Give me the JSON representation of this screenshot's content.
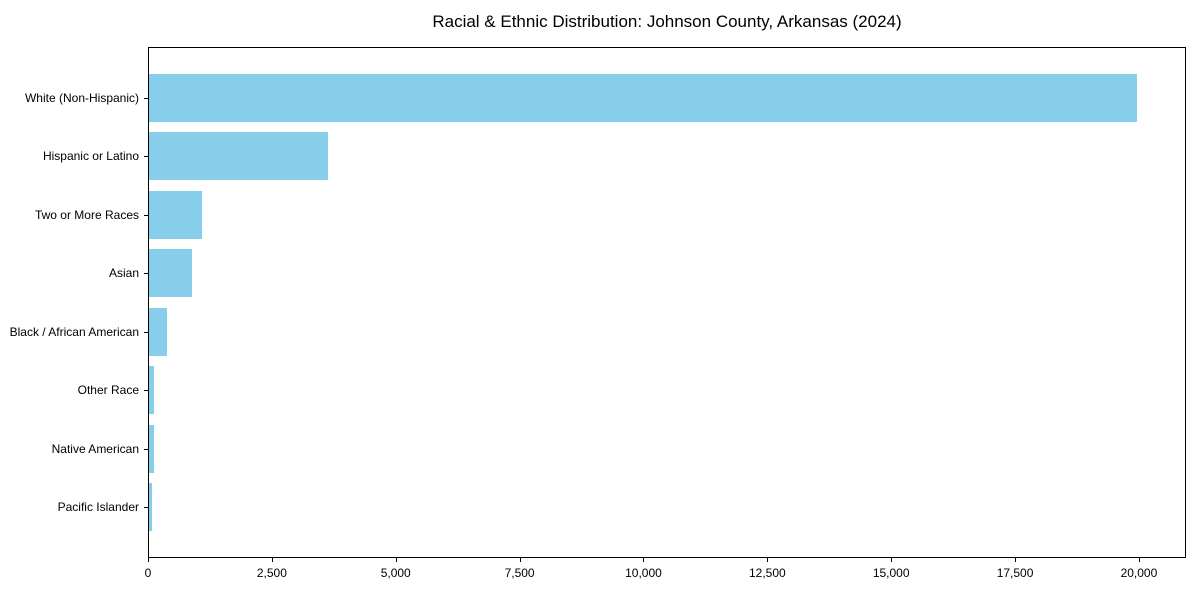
{
  "chart_data": {
    "type": "bar",
    "orientation": "horizontal",
    "title": "Racial & Ethnic Distribution: Johnson County, Arkansas (2024)",
    "categories": [
      "White (Non-Hispanic)",
      "Hispanic or Latino",
      "Two or More Races",
      "Asian",
      "Black / African American",
      "Other Race",
      "Native American",
      "Pacific Islander"
    ],
    "values": [
      19940,
      3610,
      1070,
      870,
      360,
      105,
      100,
      65
    ],
    "xlabel": "",
    "ylabel": "",
    "xlim": [
      0,
      20950
    ],
    "x_ticks": [
      0,
      2500,
      5000,
      7500,
      10000,
      12500,
      15000,
      17500,
      20000
    ],
    "x_tick_labels": [
      "0",
      "2,500",
      "5,000",
      "7,500",
      "10,000",
      "12,500",
      "15,000",
      "17,500",
      "20,000"
    ],
    "bar_color": "#87CEEB",
    "spine_color": "#000000",
    "background_color": "#ffffff",
    "grid": false,
    "legend": null
  }
}
